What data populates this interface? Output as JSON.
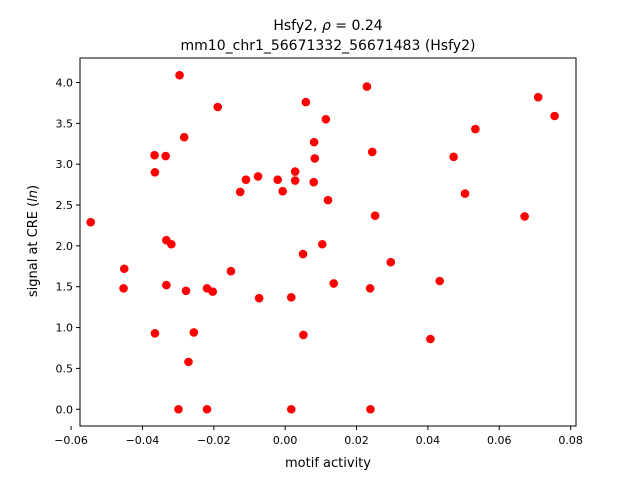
{
  "chart_data": {
    "type": "scatter",
    "title_line1": "Hsfy2, ρ = 0.24",
    "title_line2": "mm10_chr1_56671332_56671483 (Hsfy2)",
    "xlabel": "motif activity",
    "ylabel": "signal at CRE (ln)",
    "xlim": [
      -0.0575,
      0.0815
    ],
    "ylim": [
      -0.205,
      4.3
    ],
    "xticks": [
      {
        "value": -0.06,
        "label": "−0.06"
      },
      {
        "value": -0.04,
        "label": "−0.04"
      },
      {
        "value": -0.02,
        "label": "−0.02"
      },
      {
        "value": 0.0,
        "label": "0.00"
      },
      {
        "value": 0.02,
        "label": "0.02"
      },
      {
        "value": 0.04,
        "label": "0.04"
      },
      {
        "value": 0.06,
        "label": "0.06"
      },
      {
        "value": 0.08,
        "label": "0.08"
      }
    ],
    "yticks": [
      {
        "value": 0.0,
        "label": "0.0"
      },
      {
        "value": 0.5,
        "label": "0.5"
      },
      {
        "value": 1.0,
        "label": "1.0"
      },
      {
        "value": 1.5,
        "label": "1.5"
      },
      {
        "value": 2.0,
        "label": "2.0"
      },
      {
        "value": 2.5,
        "label": "2.5"
      },
      {
        "value": 3.0,
        "label": "3.0"
      },
      {
        "value": 3.5,
        "label": "3.5"
      },
      {
        "value": 4.0,
        "label": "4.0"
      }
    ],
    "marker_color": "#ff0000",
    "grid": false,
    "points": [
      {
        "x": -0.0545,
        "y": 2.29
      },
      {
        "x": -0.0451,
        "y": 1.72
      },
      {
        "x": -0.0453,
        "y": 1.48
      },
      {
        "x": -0.0366,
        "y": 3.11
      },
      {
        "x": -0.0365,
        "y": 2.9
      },
      {
        "x": -0.0365,
        "y": 0.93
      },
      {
        "x": -0.0335,
        "y": 3.1
      },
      {
        "x": -0.0333,
        "y": 2.07
      },
      {
        "x": -0.0333,
        "y": 1.52
      },
      {
        "x": -0.0319,
        "y": 2.02
      },
      {
        "x": -0.0296,
        "y": 4.09
      },
      {
        "x": -0.0299,
        "y": 0.0
      },
      {
        "x": -0.0283,
        "y": 3.33
      },
      {
        "x": -0.0278,
        "y": 1.45
      },
      {
        "x": -0.0271,
        "y": 0.58
      },
      {
        "x": -0.0256,
        "y": 0.94
      },
      {
        "x": -0.0219,
        "y": 1.48
      },
      {
        "x": -0.0219,
        "y": 0.0
      },
      {
        "x": -0.0203,
        "y": 1.44
      },
      {
        "x": -0.0189,
        "y": 3.7
      },
      {
        "x": -0.0152,
        "y": 1.69
      },
      {
        "x": -0.0126,
        "y": 2.66
      },
      {
        "x": -0.011,
        "y": 2.81
      },
      {
        "x": -0.0076,
        "y": 2.85
      },
      {
        "x": -0.0073,
        "y": 1.36
      },
      {
        "x": -0.0021,
        "y": 2.81
      },
      {
        "x": -0.0007,
        "y": 2.67
      },
      {
        "x": 0.0017,
        "y": 1.37
      },
      {
        "x": 0.0017,
        "y": 0.0
      },
      {
        "x": 0.0028,
        "y": 2.91
      },
      {
        "x": 0.0028,
        "y": 2.8
      },
      {
        "x": 0.005,
        "y": 1.9
      },
      {
        "x": 0.0051,
        "y": 0.91
      },
      {
        "x": 0.0058,
        "y": 3.76
      },
      {
        "x": 0.0081,
        "y": 3.27
      },
      {
        "x": 0.0083,
        "y": 3.07
      },
      {
        "x": 0.008,
        "y": 2.78
      },
      {
        "x": 0.0104,
        "y": 2.02
      },
      {
        "x": 0.0114,
        "y": 3.55
      },
      {
        "x": 0.012,
        "y": 2.56
      },
      {
        "x": 0.0136,
        "y": 1.54
      },
      {
        "x": 0.0229,
        "y": 3.95
      },
      {
        "x": 0.0244,
        "y": 3.15
      },
      {
        "x": 0.0252,
        "y": 2.37
      },
      {
        "x": 0.0238,
        "y": 1.48
      },
      {
        "x": 0.0239,
        "y": 0.0
      },
      {
        "x": 0.0296,
        "y": 1.8
      },
      {
        "x": 0.0407,
        "y": 0.86
      },
      {
        "x": 0.0433,
        "y": 1.57
      },
      {
        "x": 0.0472,
        "y": 3.09
      },
      {
        "x": 0.0504,
        "y": 2.64
      },
      {
        "x": 0.0533,
        "y": 3.43
      },
      {
        "x": 0.0671,
        "y": 2.36
      },
      {
        "x": 0.0709,
        "y": 3.82
      },
      {
        "x": 0.0755,
        "y": 3.59
      }
    ]
  }
}
